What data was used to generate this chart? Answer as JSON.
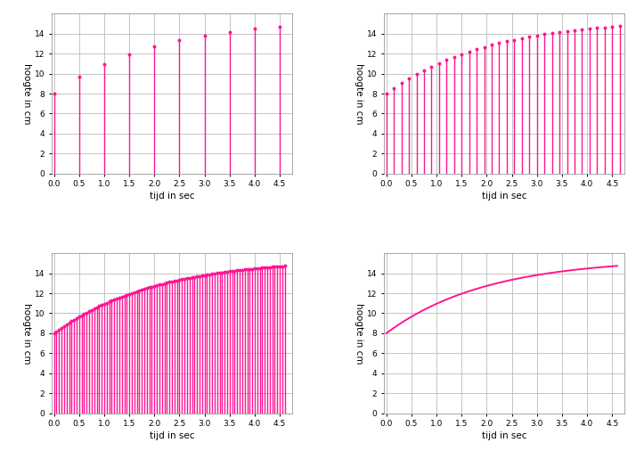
{
  "xlabel": "tijd in sec",
  "ylabel": "hoogte in cm",
  "xlim": [
    -0.05,
    4.75
  ],
  "ylim": [
    0,
    16
  ],
  "yticks": [
    0,
    2,
    4,
    6,
    8,
    10,
    12,
    14
  ],
  "xticks": [
    0.0,
    0.5,
    1.0,
    1.5,
    2.0,
    2.5,
    3.0,
    3.5,
    4.0,
    4.5
  ],
  "color": "#FF1493",
  "background_color": "#ffffff",
  "grid_color": "#bbbbbb",
  "intervals": [
    0.5,
    0.15,
    0.05,
    0.001
  ],
  "t_start": 0.0,
  "t_end": 4.6,
  "a": 8.0,
  "b": 7.5,
  "c": 0.5
}
